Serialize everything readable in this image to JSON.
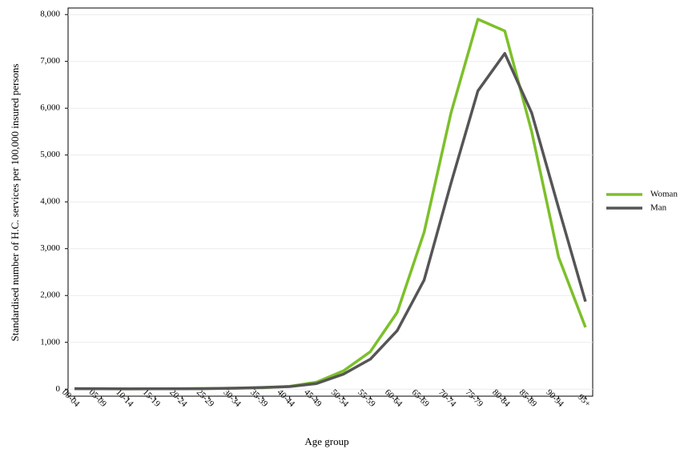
{
  "chart_data": {
    "type": "line",
    "x_label": "Age group",
    "y_label": "Standardised number of H.C. services per 100,000 insured persons",
    "categories": [
      "00-04",
      "05-09",
      "10-14",
      "15-19",
      "20-24",
      "25-29",
      "30-34",
      "35-39",
      "40-44",
      "45-49",
      "50-54",
      "55-59",
      "60-64",
      "65-69",
      "70-74",
      "75-79",
      "80-84",
      "85-89",
      "90-94",
      "95+"
    ],
    "series": [
      {
        "name": "Woman",
        "color": "#7cc02a",
        "values": [
          10,
          10,
          5,
          8,
          10,
          15,
          20,
          30,
          60,
          150,
          390,
          800,
          1640,
          3350,
          5900,
          7900,
          7650,
          5500,
          2820,
          1320
        ]
      },
      {
        "name": "Man",
        "color": "#555555",
        "values": [
          10,
          8,
          5,
          8,
          8,
          12,
          20,
          35,
          55,
          120,
          320,
          640,
          1250,
          2330,
          4400,
          6370,
          7170,
          5900,
          3870,
          1870
        ]
      }
    ],
    "ylim": [
      -150,
      8140
    ],
    "yticks": [
      0,
      {
        "value": 1000,
        "label": "1,000"
      },
      {
        "value": 2000,
        "label": "2,000"
      },
      {
        "value": 3000,
        "label": "3,000"
      },
      {
        "value": 4000,
        "label": "4,000"
      },
      {
        "value": 5000,
        "label": "5,000"
      },
      {
        "value": 6000,
        "label": "6,000"
      },
      {
        "value": 7000,
        "label": "7,000"
      },
      {
        "value": 8000,
        "label": "8,000"
      }
    ],
    "grid": true,
    "legend": "right"
  }
}
